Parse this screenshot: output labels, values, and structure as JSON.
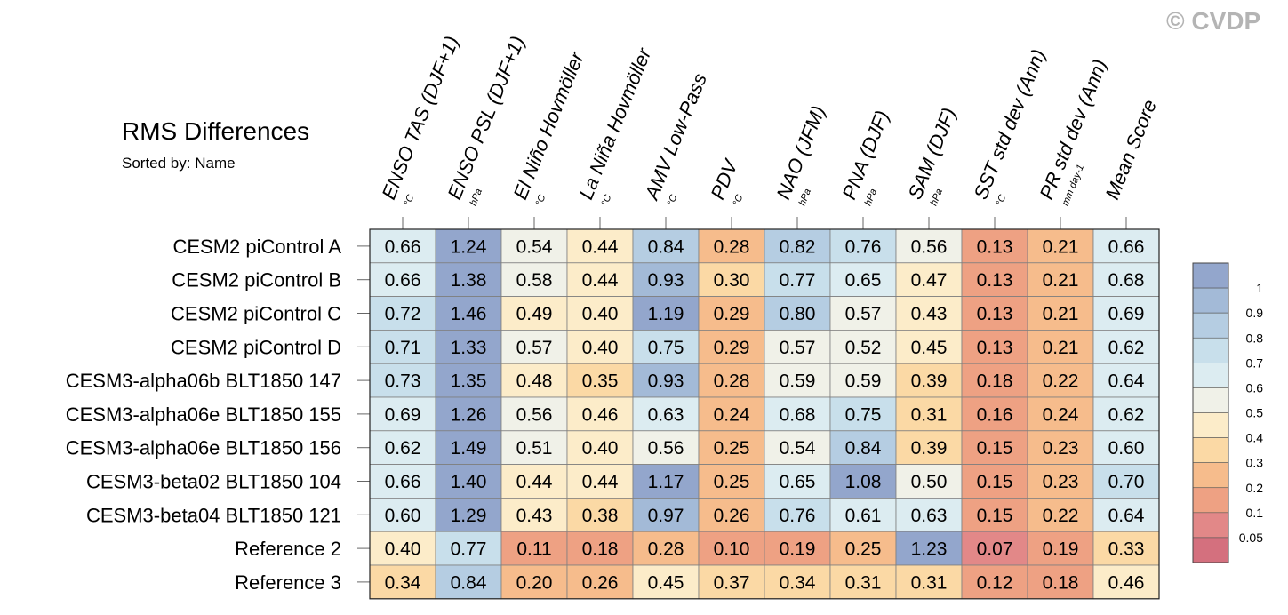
{
  "watermark": "© CVDP",
  "chart_data": {
    "type": "heatmap",
    "title": "RMS Differences",
    "subtitle": "Sorted by: Name",
    "columns": [
      {
        "label": "ENSO TAS (DJF+1)",
        "unit": "°C"
      },
      {
        "label": "ENSO PSL (DJF+1)",
        "unit": "hPa"
      },
      {
        "label": "El Niño Hovmöller",
        "unit": "°C"
      },
      {
        "label": "La Niña Hovmöller",
        "unit": "°C"
      },
      {
        "label": "AMV Low-Pass",
        "unit": "°C"
      },
      {
        "label": "PDV",
        "unit": "°C"
      },
      {
        "label": "NAO (JFM)",
        "unit": "hPa"
      },
      {
        "label": "PNA (DJF)",
        "unit": "hPa"
      },
      {
        "label": "SAM (DJF)",
        "unit": "hPa"
      },
      {
        "label": "SST std dev (Ann)",
        "unit": "°C"
      },
      {
        "label": "PR std dev (Ann)",
        "unit": "mm day-1"
      },
      {
        "label": "Mean Score",
        "unit": ""
      }
    ],
    "rows": [
      "CESM2 piControl A",
      "CESM2 piControl B",
      "CESM2 piControl C",
      "CESM2 piControl D",
      "CESM3-alpha06b BLT1850 147",
      "CESM3-alpha06e BLT1850 155",
      "CESM3-alpha06e BLT1850 156",
      "CESM3-beta02 BLT1850 104",
      "CESM3-beta04 BLT1850 121",
      "Reference 2",
      "Reference 3"
    ],
    "values": [
      [
        "0.66",
        "1.24",
        "0.54",
        "0.44",
        "0.84",
        "0.28",
        "0.82",
        "0.76",
        "0.56",
        "0.13",
        "0.21",
        "0.66"
      ],
      [
        "0.66",
        "1.38",
        "0.58",
        "0.44",
        "0.93",
        "0.30",
        "0.77",
        "0.65",
        "0.47",
        "0.13",
        "0.21",
        "0.68"
      ],
      [
        "0.72",
        "1.46",
        "0.49",
        "0.40",
        "1.19",
        "0.29",
        "0.80",
        "0.57",
        "0.43",
        "0.13",
        "0.21",
        "0.69"
      ],
      [
        "0.71",
        "1.33",
        "0.57",
        "0.40",
        "0.75",
        "0.29",
        "0.57",
        "0.52",
        "0.45",
        "0.13",
        "0.21",
        "0.62"
      ],
      [
        "0.73",
        "1.35",
        "0.48",
        "0.35",
        "0.93",
        "0.28",
        "0.59",
        "0.59",
        "0.39",
        "0.18",
        "0.22",
        "0.64"
      ],
      [
        "0.69",
        "1.26",
        "0.56",
        "0.46",
        "0.63",
        "0.24",
        "0.68",
        "0.75",
        "0.31",
        "0.16",
        "0.24",
        "0.62"
      ],
      [
        "0.62",
        "1.49",
        "0.51",
        "0.40",
        "0.56",
        "0.25",
        "0.54",
        "0.84",
        "0.39",
        "0.15",
        "0.23",
        "0.60"
      ],
      [
        "0.66",
        "1.40",
        "0.44",
        "0.44",
        "1.17",
        "0.25",
        "0.65",
        "1.08",
        "0.50",
        "0.15",
        "0.23",
        "0.70"
      ],
      [
        "0.60",
        "1.29",
        "0.43",
        "0.38",
        "0.97",
        "0.26",
        "0.76",
        "0.61",
        "0.63",
        "0.15",
        "0.22",
        "0.64"
      ],
      [
        "0.40",
        "0.77",
        "0.11",
        "0.18",
        "0.28",
        "0.10",
        "0.19",
        "0.25",
        "1.23",
        "0.07",
        "0.19",
        "0.33"
      ],
      [
        "0.34",
        "0.84",
        "0.20",
        "0.26",
        "0.45",
        "0.37",
        "0.34",
        "0.31",
        "0.31",
        "0.12",
        "0.18",
        "0.46"
      ]
    ],
    "colorbar": {
      "labels": [
        "1",
        "0.9",
        "0.8",
        "0.7",
        "0.6",
        "0.5",
        "0.4",
        "0.3",
        "0.2",
        "0.1",
        "0.05"
      ],
      "colors": [
        "#93a6cc",
        "#a3bad7",
        "#b5cde2",
        "#c8dfeb",
        "#dcecf1",
        "#f0f1e8",
        "#fcecc9",
        "#fbd9a5",
        "#f6bc8c",
        "#eea183",
        "#e28888",
        "#d4707e"
      ]
    }
  }
}
